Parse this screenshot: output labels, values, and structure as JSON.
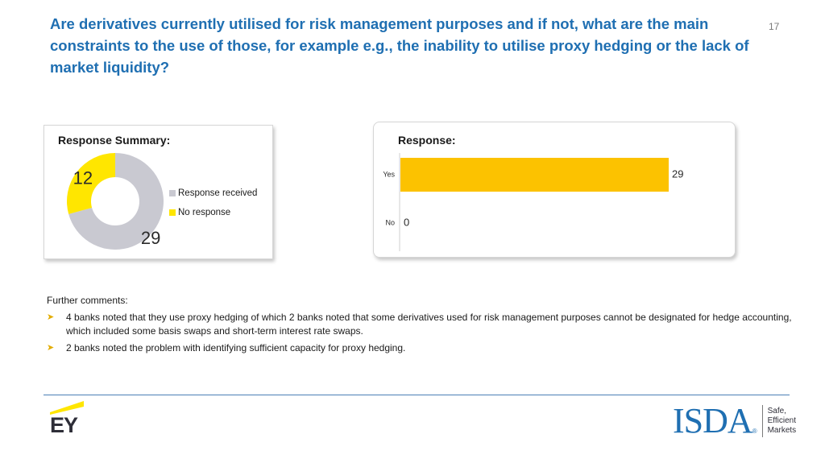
{
  "title": "Are derivatives currently utilised for risk management purposes and if not, what are the main constraints to the use of those, for example e.g., the inability to utilise proxy hedging or the lack of market liquidity?",
  "page_number": "17",
  "colors": {
    "title_blue": "#1f6fb2",
    "response_received": "#c9c9d1",
    "no_response": "#ffe600",
    "bar": "#fcc200",
    "bullet": "#e3ac00"
  },
  "chart_data": [
    {
      "type": "pie",
      "title": "Response Summary:",
      "donut": true,
      "categories": [
        "Response received",
        "No response"
      ],
      "values": [
        29,
        12
      ],
      "legend": "right"
    },
    {
      "type": "bar",
      "orientation": "horizontal",
      "title": "Response:",
      "categories": [
        "Yes",
        "No"
      ],
      "values": [
        29,
        0
      ],
      "xlim": [
        0,
        30
      ],
      "grid": false
    }
  ],
  "comments": {
    "heading": "Further comments:",
    "items": [
      "4 banks noted that they use proxy hedging of which 2 banks noted that some derivatives used for risk management purposes cannot be designated for hedge accounting, which included some basis swaps and short-term interest rate swaps.",
      "2 banks noted the problem with identifying sufficient capacity for proxy hedging."
    ]
  },
  "footer": {
    "ey_logo_text": "EY",
    "isda_logo_text": "ISDA",
    "isda_registered_mark": "®",
    "isda_tagline": [
      "Safe,",
      "Efficient",
      "Markets"
    ]
  }
}
